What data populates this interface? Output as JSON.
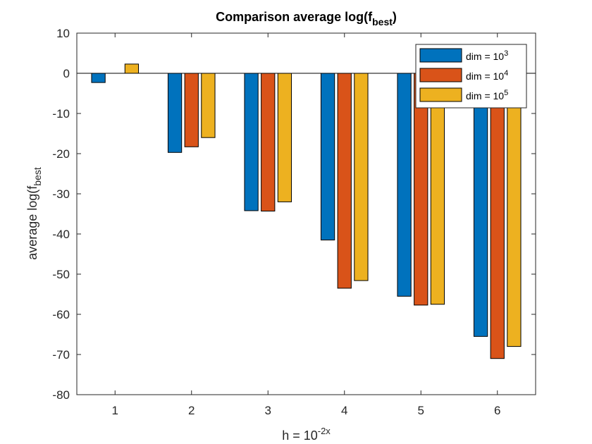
{
  "chart_data": {
    "type": "bar",
    "title": "Comparison average log(f",
    "title_sub": "best",
    "title_end": ")",
    "xlabel_base": "h = 10",
    "xlabel_sup": "-2x",
    "ylabel_main": "average log(f",
    "ylabel_sub": "best",
    "categories": [
      "1",
      "2",
      "3",
      "4",
      "5",
      "6"
    ],
    "series": [
      {
        "name_base": "dim = 10",
        "name_sup": "3",
        "color": "#0072BD",
        "values": [
          -2.3,
          -19.7,
          -34.2,
          -41.5,
          -55.5,
          -65.5
        ]
      },
      {
        "name_base": "dim = 10",
        "name_sup": "4",
        "color": "#D95319",
        "values": [
          0,
          -18.3,
          -34.3,
          -53.5,
          -57.7,
          -71.0
        ]
      },
      {
        "name_base": "dim = 10",
        "name_sup": "5",
        "color": "#EDB120",
        "values": [
          2.3,
          -16.0,
          -32.0,
          -51.6,
          -57.5,
          -68.0
        ]
      }
    ],
    "ylim": [
      -80,
      10
    ],
    "yticks": [
      "10",
      "0",
      "-10",
      "-20",
      "-30",
      "-40",
      "-50",
      "-60",
      "-70",
      "-80"
    ],
    "ytick_values": [
      10,
      0,
      -10,
      -20,
      -30,
      -40,
      -50,
      -60,
      -70,
      -80
    ],
    "legend_position": "top-right",
    "grid": false
  }
}
